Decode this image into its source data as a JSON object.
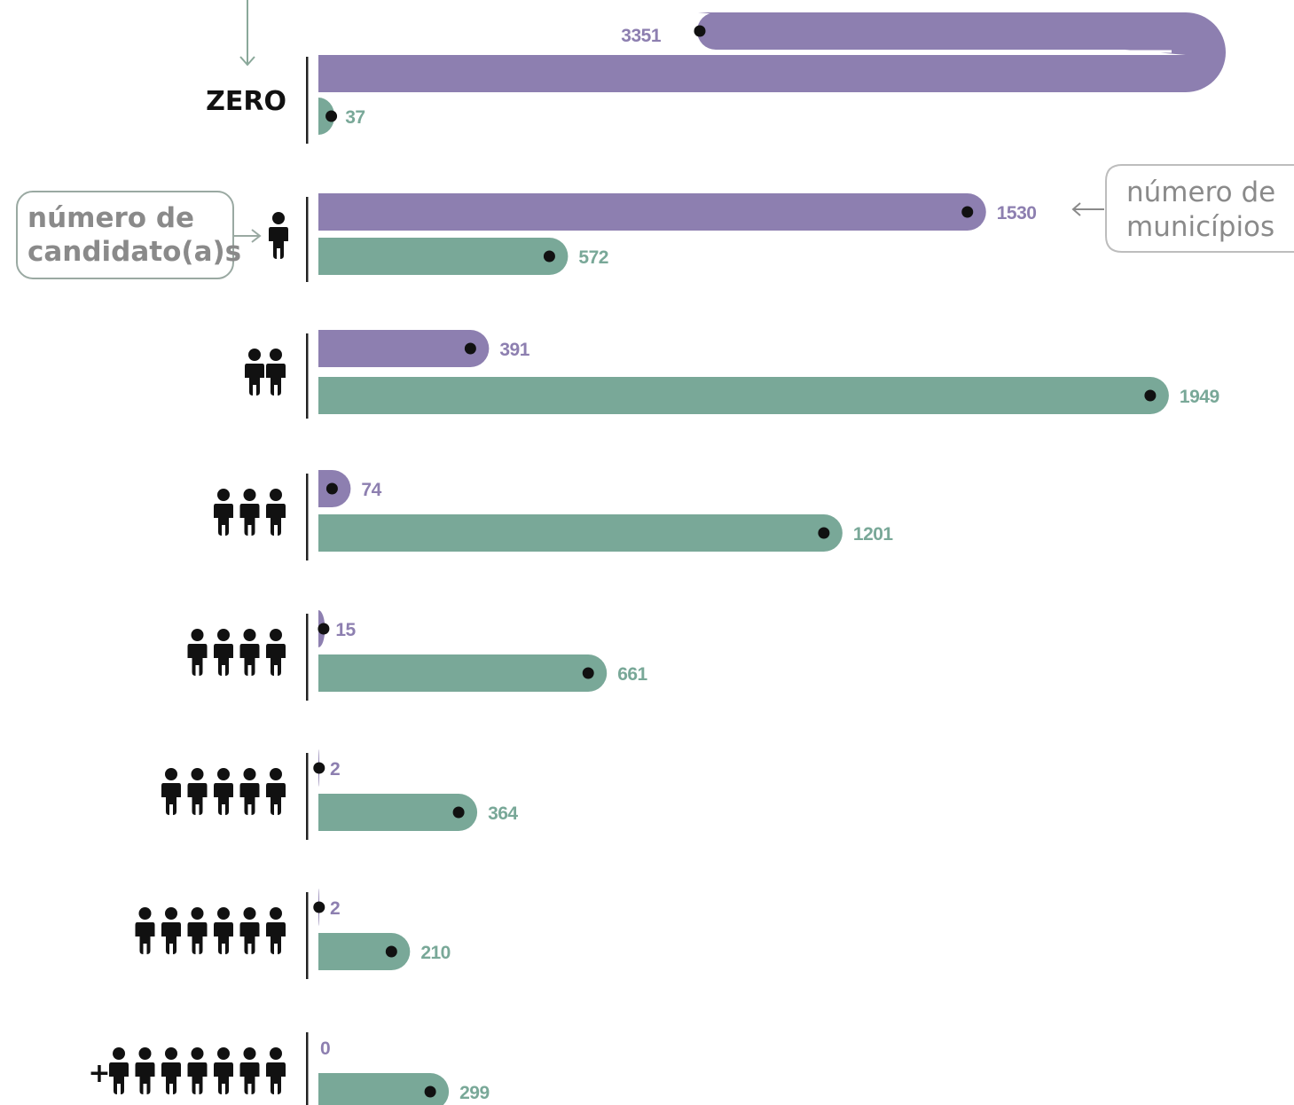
{
  "chart_data": {
    "type": "bar",
    "orientation": "horizontal",
    "categories": [
      "ZERO",
      "1",
      "2",
      "3",
      "4",
      "5",
      "6",
      "+7"
    ],
    "series": [
      {
        "values": [
          3351,
          1530,
          391,
          74,
          15,
          2,
          2,
          0
        ]
      },
      {
        "values": [
          37,
          572,
          1949,
          1201,
          661,
          364,
          210,
          299
        ]
      }
    ],
    "annotations": {
      "rows_label": "número de candidato(a)s",
      "values_label": "número de municípios"
    },
    "zero_label": "ZERO",
    "plus_sign": "+",
    "colors": {
      "series_0": "#8d7fb0",
      "series_1": "#79a898",
      "dot": "#111111",
      "icon": "#111111",
      "axis": "#222222",
      "callout_text": "#8a8a8a",
      "callout_border": "#9aa9a2"
    }
  }
}
